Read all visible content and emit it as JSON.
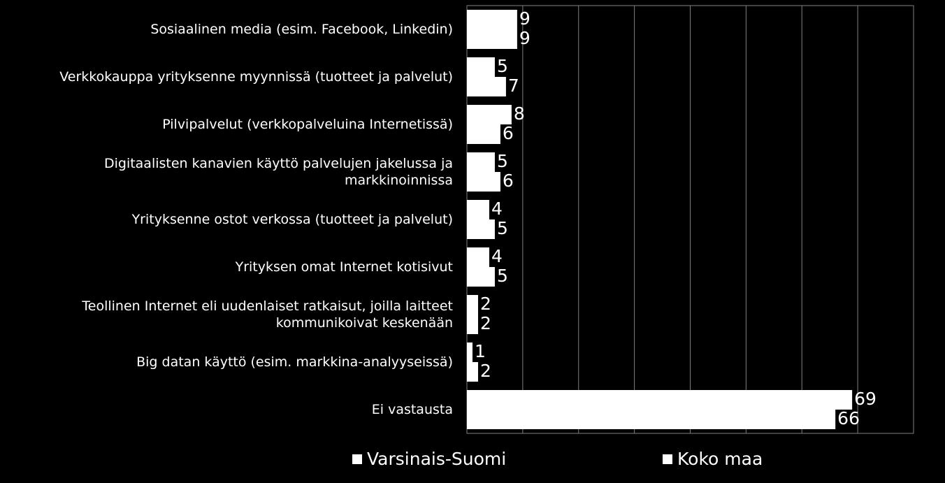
{
  "chart_data": {
    "type": "bar",
    "orientation": "horizontal",
    "categories": [
      "Sosiaalinen media (esim. Facebook, Linkedin)",
      "Verkkokauppa yrityksenne myynnissä (tuotteet ja palvelut)",
      "Pilvipalvelut  (verkkopalveluina Internetissä)",
      "Digitaalisten kanavien käyttö palvelujen jakelussa ja\nmarkkinoinnissa",
      "Yrityksenne ostot verkossa (tuotteet ja palvelut)",
      "Yrityksen omat Internet kotisivut",
      "Teollinen Internet eli uudenlaiset ratkaisut, joilla laitteet\nkommunikoivat keskenään",
      "Big datan käyttö (esim. markkina-analyyseissä)",
      "Ei vastausta"
    ],
    "series": [
      {
        "name": "Varsinais-Suomi",
        "color": "#ffffff",
        "values": [
          9,
          5,
          8,
          5,
          4,
          4,
          2,
          1,
          69
        ]
      },
      {
        "name": "Koko maa",
        "color": "#ffffff",
        "values": [
          9,
          7,
          6,
          6,
          5,
          5,
          2,
          2,
          66
        ]
      }
    ],
    "xlim": [
      0,
      80
    ],
    "xticks": [
      0,
      10,
      20,
      30,
      40,
      50,
      60,
      70,
      80
    ],
    "grid": true,
    "legend": "bottom"
  }
}
